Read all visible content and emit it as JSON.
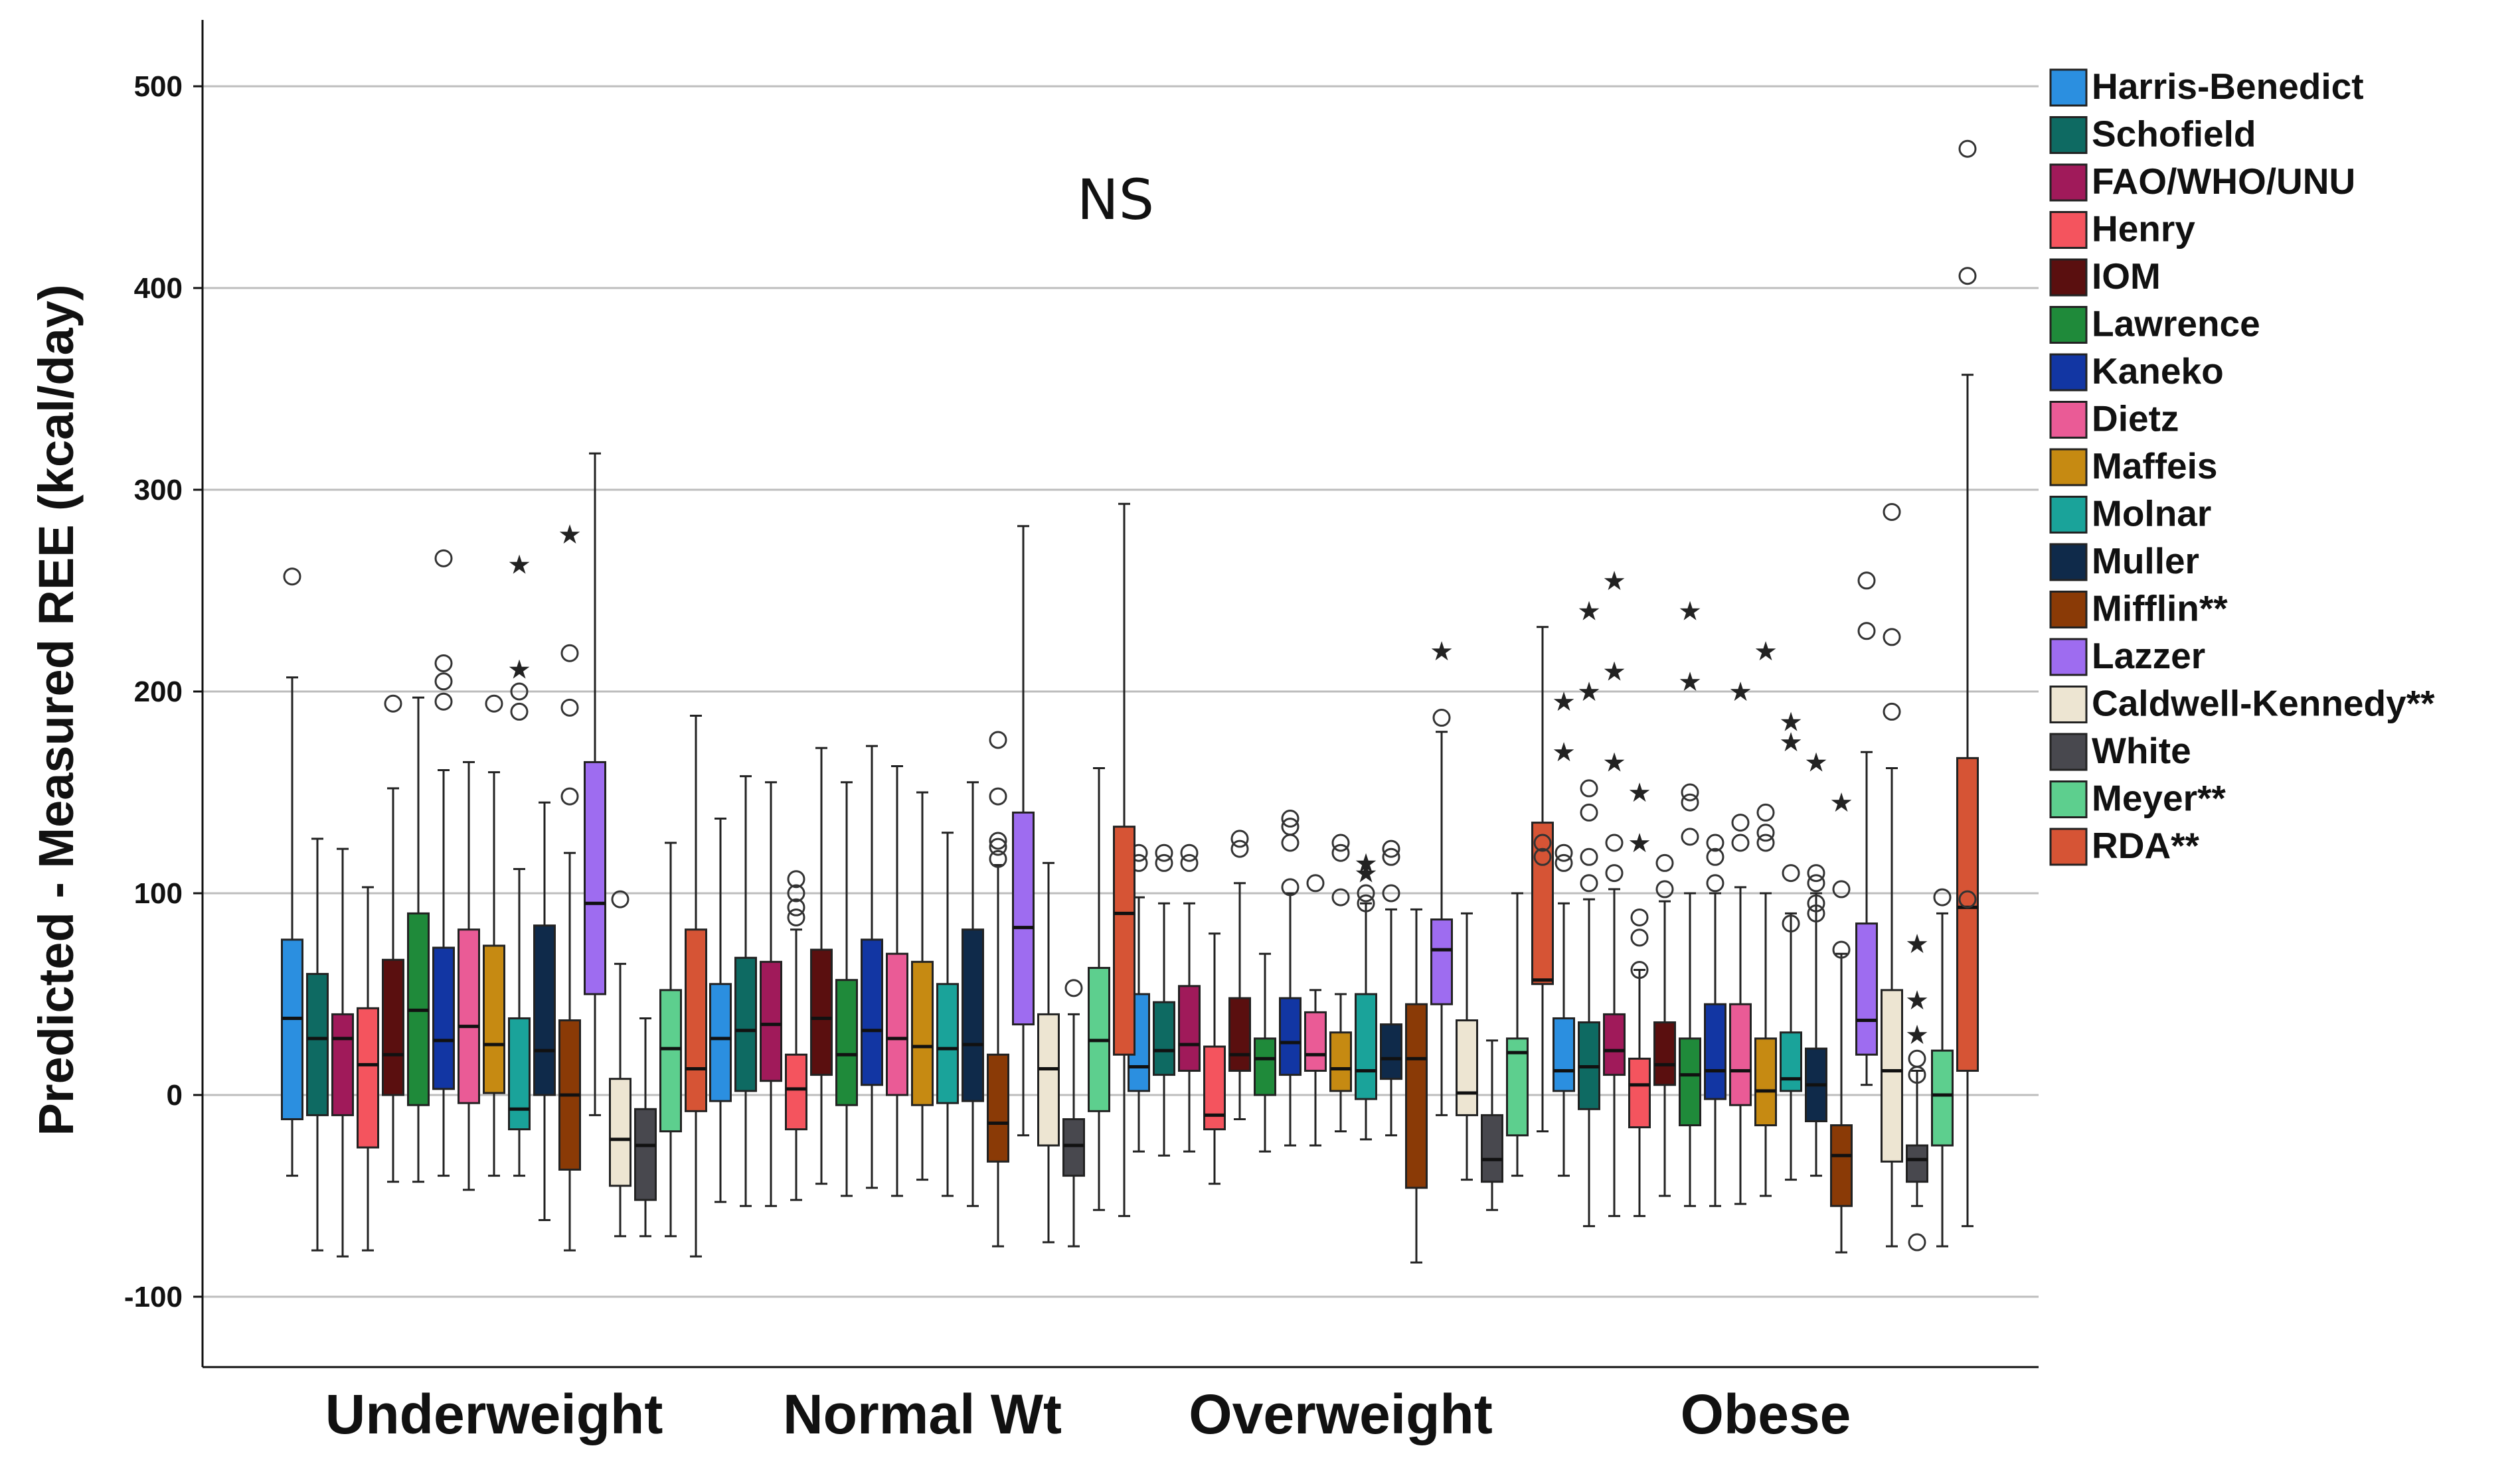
{
  "chart_data": {
    "type": "boxplot",
    "ylabel": "Predicted - Measured REE (kcal/day)",
    "xlabel": "",
    "ylim": [
      -130,
      540
    ],
    "yticks": [
      -100,
      0,
      100,
      200,
      300,
      400,
      500
    ],
    "grid": "horizontal",
    "legend_position": "right",
    "annotation": "NS",
    "categories": [
      "Underweight",
      "Normal Wt",
      "Overweight",
      "Obese"
    ],
    "series": [
      {
        "name": "Harris-Benedict",
        "color": "#2b8fe0",
        "boxes": [
          {
            "min": -40,
            "q1": -12,
            "median": 38,
            "q3": 77,
            "max": 207,
            "outliers": [
              257
            ],
            "extremes": []
          },
          {
            "min": -53,
            "q1": -3,
            "median": 28,
            "q3": 55,
            "max": 137,
            "outliers": [],
            "extremes": []
          },
          {
            "min": -28,
            "q1": 2,
            "median": 14,
            "q3": 50,
            "max": 98,
            "outliers": [
              115,
              120
            ],
            "extremes": []
          },
          {
            "min": -40,
            "q1": 2,
            "median": 12,
            "q3": 38,
            "max": 95,
            "outliers": [
              115,
              120
            ],
            "extremes": [
              170,
              195
            ]
          }
        ]
      },
      {
        "name": "Schofield",
        "color": "#0e6a62",
        "boxes": [
          {
            "min": -77,
            "q1": -10,
            "median": 28,
            "q3": 60,
            "max": 127,
            "outliers": [],
            "extremes": []
          },
          {
            "min": -55,
            "q1": 2,
            "median": 32,
            "q3": 68,
            "max": 158,
            "outliers": [],
            "extremes": []
          },
          {
            "min": -30,
            "q1": 10,
            "median": 22,
            "q3": 46,
            "max": 95,
            "outliers": [
              115,
              120
            ],
            "extremes": []
          },
          {
            "min": -65,
            "q1": -7,
            "median": 14,
            "q3": 36,
            "max": 97,
            "outliers": [
              105,
              118,
              140,
              152
            ],
            "extremes": [
              200,
              240
            ]
          }
        ]
      },
      {
        "name": "FAO/WHO/UNU",
        "color": "#a01a5a",
        "boxes": [
          {
            "min": -80,
            "q1": -10,
            "median": 28,
            "q3": 40,
            "max": 122,
            "outliers": [],
            "extremes": []
          },
          {
            "min": -55,
            "q1": 7,
            "median": 35,
            "q3": 66,
            "max": 155,
            "outliers": [],
            "extremes": []
          },
          {
            "min": -28,
            "q1": 12,
            "median": 25,
            "q3": 54,
            "max": 95,
            "outliers": [
              115,
              120
            ],
            "extremes": []
          },
          {
            "min": -60,
            "q1": 10,
            "median": 22,
            "q3": 40,
            "max": 102,
            "outliers": [
              110,
              125
            ],
            "extremes": [
              165,
              210,
              255
            ]
          }
        ]
      },
      {
        "name": "Henry",
        "color": "#f4545e",
        "boxes": [
          {
            "min": -77,
            "q1": -26,
            "median": 15,
            "q3": 43,
            "max": 103,
            "outliers": [],
            "extremes": []
          },
          {
            "min": -52,
            "q1": -17,
            "median": 3,
            "q3": 20,
            "max": 82,
            "outliers": [
              88,
              93,
              100,
              107
            ],
            "extremes": []
          },
          {
            "min": -44,
            "q1": -17,
            "median": -10,
            "q3": 24,
            "max": 80,
            "outliers": [],
            "extremes": []
          },
          {
            "min": -60,
            "q1": -16,
            "median": 5,
            "q3": 18,
            "max": 62,
            "outliers": [
              62,
              78,
              88
            ],
            "extremes": [
              125,
              150
            ]
          }
        ]
      },
      {
        "name": "IOM",
        "color": "#5a0f0f",
        "boxes": [
          {
            "min": -43,
            "q1": 0,
            "median": 20,
            "q3": 67,
            "max": 152,
            "outliers": [
              194
            ],
            "extremes": []
          },
          {
            "min": -44,
            "q1": 10,
            "median": 38,
            "q3": 72,
            "max": 172,
            "outliers": [],
            "extremes": []
          },
          {
            "min": -12,
            "q1": 12,
            "median": 20,
            "q3": 48,
            "max": 105,
            "outliers": [
              122,
              127
            ],
            "extremes": []
          },
          {
            "min": -50,
            "q1": 5,
            "median": 15,
            "q3": 36,
            "max": 96,
            "outliers": [
              102,
              115
            ],
            "extremes": []
          }
        ]
      },
      {
        "name": "Lawrence",
        "color": "#1f8a3a",
        "boxes": [
          {
            "min": -43,
            "q1": -5,
            "median": 42,
            "q3": 90,
            "max": 197,
            "outliers": [],
            "extremes": []
          },
          {
            "min": -50,
            "q1": -5,
            "median": 20,
            "q3": 57,
            "max": 155,
            "outliers": [],
            "extremes": []
          },
          {
            "min": -28,
            "q1": 0,
            "median": 18,
            "q3": 28,
            "max": 70,
            "outliers": [],
            "extremes": []
          },
          {
            "min": -55,
            "q1": -15,
            "median": 10,
            "q3": 28,
            "max": 100,
            "outliers": [
              128,
              145,
              150
            ],
            "extremes": [
              205,
              240
            ]
          }
        ]
      },
      {
        "name": "Kaneko",
        "color": "#1236a3",
        "boxes": [
          {
            "min": -40,
            "q1": 3,
            "median": 27,
            "q3": 73,
            "max": 161,
            "outliers": [
              195,
              205,
              214,
              266
            ],
            "extremes": []
          },
          {
            "min": -46,
            "q1": 5,
            "median": 32,
            "q3": 77,
            "max": 173,
            "outliers": [],
            "extremes": []
          },
          {
            "min": -25,
            "q1": 10,
            "median": 26,
            "q3": 48,
            "max": 100,
            "outliers": [
              103,
              125,
              133,
              137
            ],
            "extremes": []
          },
          {
            "min": -55,
            "q1": -2,
            "median": 12,
            "q3": 45,
            "max": 100,
            "outliers": [
              105,
              118,
              125
            ],
            "extremes": []
          }
        ]
      },
      {
        "name": "Dietz",
        "color": "#ea5b96",
        "boxes": [
          {
            "min": -47,
            "q1": -4,
            "median": 34,
            "q3": 82,
            "max": 165,
            "outliers": [],
            "extremes": []
          },
          {
            "min": -50,
            "q1": 0,
            "median": 28,
            "q3": 70,
            "max": 163,
            "outliers": [],
            "extremes": []
          },
          {
            "min": -25,
            "q1": 12,
            "median": 20,
            "q3": 41,
            "max": 52,
            "outliers": [
              105
            ],
            "extremes": []
          },
          {
            "min": -54,
            "q1": -5,
            "median": 12,
            "q3": 45,
            "max": 103,
            "outliers": [
              125,
              135
            ],
            "extremes": [
              200
            ]
          }
        ]
      },
      {
        "name": "Maffeis",
        "color": "#c68a12",
        "boxes": [
          {
            "min": -40,
            "q1": 1,
            "median": 25,
            "q3": 74,
            "max": 160,
            "outliers": [
              194
            ],
            "extremes": []
          },
          {
            "min": -42,
            "q1": -5,
            "median": 24,
            "q3": 66,
            "max": 150,
            "outliers": [],
            "extremes": []
          },
          {
            "min": -18,
            "q1": 2,
            "median": 13,
            "q3": 31,
            "max": 50,
            "outliers": [
              98,
              120,
              125
            ],
            "extremes": []
          },
          {
            "min": -50,
            "q1": -15,
            "median": 2,
            "q3": 28,
            "max": 100,
            "outliers": [
              125,
              130,
              140
            ],
            "extremes": [
              220
            ]
          }
        ]
      },
      {
        "name": "Molnar",
        "color": "#1aa39a",
        "boxes": [
          {
            "min": -40,
            "q1": -17,
            "median": -7,
            "q3": 38,
            "max": 112,
            "outliers": [
              190,
              200
            ],
            "extremes": [
              211,
              263
            ]
          },
          {
            "min": -50,
            "q1": -4,
            "median": 23,
            "q3": 55,
            "max": 130,
            "outliers": [],
            "extremes": []
          },
          {
            "min": -22,
            "q1": -2,
            "median": 12,
            "q3": 50,
            "max": 95,
            "outliers": [
              95,
              100
            ],
            "extremes": [
              110,
              115
            ]
          },
          {
            "min": -42,
            "q1": 2,
            "median": 8,
            "q3": 31,
            "max": 90,
            "outliers": [
              85,
              110
            ],
            "extremes": [
              175,
              185
            ]
          }
        ]
      },
      {
        "name": "Muller",
        "color": "#0f2a4a",
        "boxes": [
          {
            "min": -62,
            "q1": 0,
            "median": 22,
            "q3": 84,
            "max": 145,
            "outliers": [],
            "extremes": []
          },
          {
            "min": -55,
            "q1": -3,
            "median": 25,
            "q3": 82,
            "max": 155,
            "outliers": [],
            "extremes": []
          },
          {
            "min": -20,
            "q1": 8,
            "median": 18,
            "q3": 35,
            "max": 92,
            "outliers": [
              100,
              118,
              122
            ],
            "extremes": []
          },
          {
            "min": -40,
            "q1": -13,
            "median": 5,
            "q3": 23,
            "max": 100,
            "outliers": [
              90,
              95,
              105,
              110
            ],
            "extremes": [
              165
            ]
          }
        ]
      },
      {
        "name": "Mifflin**",
        "color": "#8a3a06",
        "boxes": [
          {
            "min": -77,
            "q1": -37,
            "median": 0,
            "q3": 37,
            "max": 120,
            "outliers": [
              148,
              192,
              219
            ],
            "extremes": [
              278
            ]
          },
          {
            "min": -75,
            "q1": -33,
            "median": -14,
            "q3": 20,
            "max": 114,
            "outliers": [
              117,
              123,
              126,
              148,
              176
            ],
            "extremes": []
          },
          {
            "min": -83,
            "q1": -46,
            "median": 18,
            "q3": 45,
            "max": 92,
            "outliers": [],
            "extremes": []
          },
          {
            "min": -78,
            "q1": -55,
            "median": -30,
            "q3": -15,
            "max": 70,
            "outliers": [
              72,
              102
            ],
            "extremes": [
              145
            ]
          }
        ]
      },
      {
        "name": "Lazzer",
        "color": "#9e6cf0",
        "boxes": [
          {
            "min": -10,
            "q1": 50,
            "median": 95,
            "q3": 165,
            "max": 318,
            "outliers": [],
            "extremes": []
          },
          {
            "min": -20,
            "q1": 35,
            "median": 83,
            "q3": 140,
            "max": 282,
            "outliers": [],
            "extremes": []
          },
          {
            "min": -10,
            "q1": 45,
            "median": 72,
            "q3": 87,
            "max": 180,
            "outliers": [
              187
            ],
            "extremes": [
              220
            ]
          },
          {
            "min": 5,
            "q1": 20,
            "median": 37,
            "q3": 85,
            "max": 170,
            "outliers": [
              230,
              255
            ],
            "extremes": []
          }
        ]
      },
      {
        "name": "Caldwell-Kennedy**",
        "color": "#ede5d2",
        "boxes": [
          {
            "min": -70,
            "q1": -45,
            "median": -22,
            "q3": 8,
            "max": 65,
            "outliers": [
              97
            ],
            "extremes": []
          },
          {
            "min": -73,
            "q1": -25,
            "median": 13,
            "q3": 40,
            "max": 115,
            "outliers": [],
            "extremes": []
          },
          {
            "min": -42,
            "q1": -10,
            "median": 1,
            "q3": 37,
            "max": 90,
            "outliers": [],
            "extremes": []
          },
          {
            "min": -75,
            "q1": -33,
            "median": 12,
            "q3": 52,
            "max": 162,
            "outliers": [
              190,
              227,
              289
            ],
            "extremes": []
          }
        ]
      },
      {
        "name": "White",
        "color": "#48484e",
        "boxes": [
          {
            "min": -70,
            "q1": -52,
            "median": -25,
            "q3": -7,
            "max": 38,
            "outliers": [],
            "extremes": []
          },
          {
            "min": -75,
            "q1": -40,
            "median": -25,
            "q3": -12,
            "max": 40,
            "outliers": [
              53
            ],
            "extremes": []
          },
          {
            "min": -57,
            "q1": -43,
            "median": -32,
            "q3": -10,
            "max": 27,
            "outliers": [],
            "extremes": []
          },
          {
            "min": -55,
            "q1": -43,
            "median": -32,
            "q3": -25,
            "max": 12,
            "outliers": [
              -73,
              10,
              18
            ],
            "extremes": [
              30,
              47,
              75
            ]
          }
        ]
      },
      {
        "name": "Meyer**",
        "color": "#5dcf8e",
        "boxes": [
          {
            "min": -70,
            "q1": -18,
            "median": 23,
            "q3": 52,
            "max": 125,
            "outliers": [],
            "extremes": []
          },
          {
            "min": -57,
            "q1": -8,
            "median": 27,
            "q3": 63,
            "max": 162,
            "outliers": [],
            "extremes": []
          },
          {
            "min": -40,
            "q1": -20,
            "median": 21,
            "q3": 28,
            "max": 100,
            "outliers": [],
            "extremes": []
          },
          {
            "min": -75,
            "q1": -25,
            "median": 0,
            "q3": 22,
            "max": 90,
            "outliers": [
              98
            ],
            "extremes": []
          }
        ]
      },
      {
        "name": "RDA**",
        "color": "#d65435",
        "boxes": [
          {
            "min": -80,
            "q1": -8,
            "median": 13,
            "q3": 82,
            "max": 188,
            "outliers": [],
            "extremes": []
          },
          {
            "min": -60,
            "q1": 20,
            "median": 90,
            "q3": 133,
            "max": 293,
            "outliers": [],
            "extremes": []
          },
          {
            "min": -18,
            "q1": 55,
            "median": 57,
            "q3": 135,
            "max": 232,
            "outliers": [
              118,
              125
            ],
            "extremes": []
          },
          {
            "min": -65,
            "q1": 12,
            "median": 93,
            "q3": 167,
            "max": 357,
            "outliers": [
              97,
              406,
              469
            ],
            "extremes": []
          }
        ]
      }
    ]
  }
}
